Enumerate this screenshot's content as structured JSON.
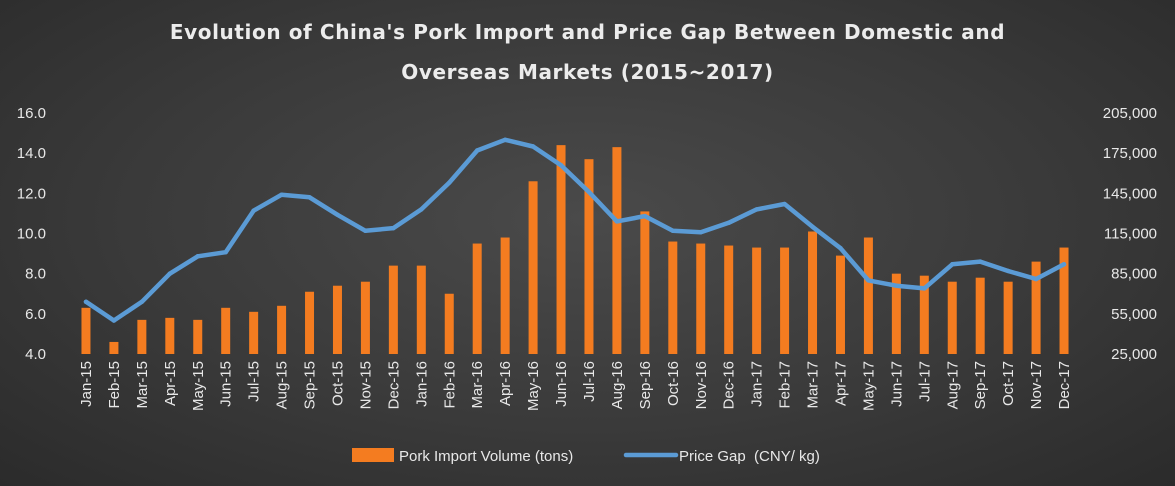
{
  "chart_data": {
    "type": "bar+line",
    "title_lines": [
      "Evolution of China's Pork Import and Price Gap Between Domestic and",
      "Overseas Markets (2015~2017)"
    ],
    "categories": [
      "Jan-15",
      "Feb-15",
      "Mar-15",
      "Apr-15",
      "May-15",
      "Jun-15",
      "Jul-15",
      "Aug-15",
      "Sep-15",
      "Oct-15",
      "Nov-15",
      "Dec-15",
      "Jan-16",
      "Feb-16",
      "Mar-16",
      "Apr-16",
      "May-16",
      "Jun-16",
      "Jul-16",
      "Aug-16",
      "Sep-16",
      "Oct-16",
      "Nov-16",
      "Dec-16",
      "Jan-17",
      "Feb-17",
      "Mar-17",
      "Apr-17",
      "May-17",
      "Jun-17",
      "Jul-17",
      "Aug-17",
      "Sep-17",
      "Oct-17",
      "Nov-17",
      "Dec-17"
    ],
    "left_axis": {
      "min": 4.0,
      "max": 16.0,
      "step": 2.0,
      "ticks": [
        "4.0",
        "6.0",
        "8.0",
        "10.0",
        "12.0",
        "14.0",
        "16.0"
      ]
    },
    "right_axis": {
      "min": 25000,
      "max": 205000,
      "step": 30000,
      "ticks": [
        "25,000",
        "55,000",
        "85,000",
        "115,000",
        "145,000",
        "175,000",
        "205,000"
      ]
    },
    "series": [
      {
        "name": "Pork Import Volume (tons)",
        "kind": "bar",
        "axis": "left",
        "color": "#f47c20",
        "values": [
          6.3,
          4.6,
          5.7,
          5.8,
          5.7,
          6.3,
          6.1,
          6.4,
          7.1,
          7.4,
          7.6,
          8.4,
          8.4,
          7.0,
          9.5,
          9.8,
          12.6,
          14.4,
          13.7,
          14.3,
          11.1,
          9.6,
          9.5,
          9.4,
          9.3,
          9.3,
          10.1,
          8.9,
          9.8,
          8.0,
          7.9,
          7.6,
          7.8,
          7.6,
          8.6,
          9.3
        ]
      },
      {
        "name": "Price Gap  (CNY/ kg)",
        "kind": "line",
        "axis": "right",
        "color": "#5b9bd5",
        "values": [
          64000,
          50000,
          64000,
          85000,
          98000,
          101000,
          132000,
          144000,
          142000,
          129000,
          117000,
          119000,
          133000,
          153000,
          177000,
          185000,
          180000,
          166000,
          146000,
          124000,
          128000,
          117000,
          116000,
          123000,
          133000,
          137000,
          120000,
          104000,
          80000,
          76000,
          74000,
          92000,
          94000,
          87000,
          81000,
          92000
        ]
      }
    ],
    "legend": {
      "position": "bottom"
    },
    "grid": false
  }
}
